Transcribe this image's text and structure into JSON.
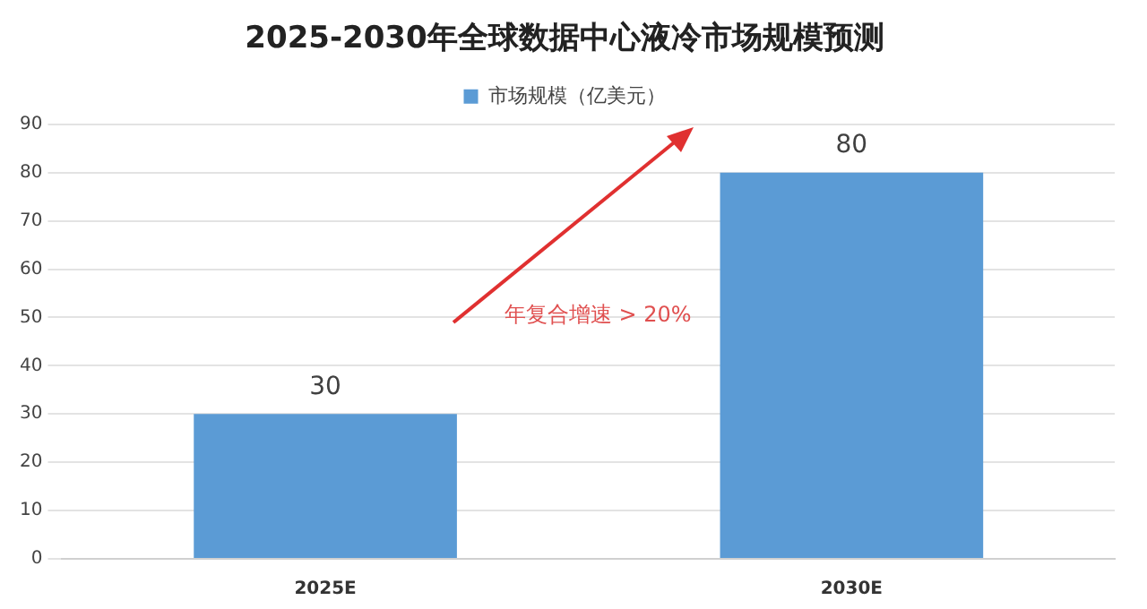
{
  "chart_data": {
    "type": "bar",
    "title": "2025-2030年全球数据中心液冷市场规模预测",
    "categories": [
      "2025E",
      "2030E"
    ],
    "series": [
      {
        "name": "市场规模（亿美元）",
        "color": "#5b9bd5",
        "values": [
          30,
          80
        ]
      }
    ],
    "ylim": [
      0,
      90
    ],
    "yticks": [
      0,
      10,
      20,
      30,
      40,
      50,
      60,
      70,
      80,
      90
    ],
    "grid": "y",
    "legend": "top",
    "data_labels": true,
    "annotations": [
      "年复合增速 > 20%"
    ]
  }
}
